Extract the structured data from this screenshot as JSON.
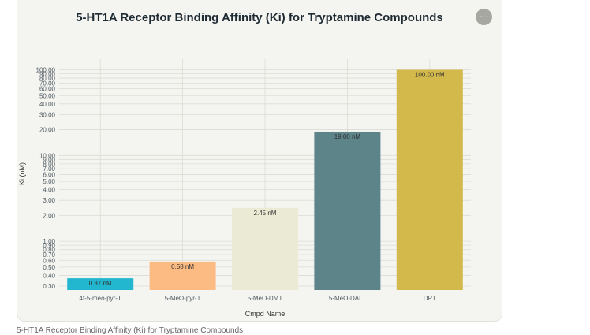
{
  "menu": {
    "more_icon": "ellipsis-icon",
    "more_glyph": "···"
  },
  "caption": "5-HT1A Receptor Binding Affinity (Ki) for Tryptamine Compounds",
  "chart_data": {
    "type": "bar",
    "title": "5-HT1A Receptor Binding Affinity (Ki) for Tryptamine Compounds",
    "xlabel": "Cmpd Name",
    "ylabel": "Ki (nM)",
    "y_scale": "log",
    "ylim": [
      0.27,
      100
    ],
    "grid": true,
    "categories": [
      "4f-5-meo-pyr-T",
      "5-MeO-pyr-T",
      "5-MeO-DMT",
      "5-MeO-DALT",
      "DPT"
    ],
    "values": [
      0.37,
      0.58,
      2.45,
      19.0,
      100.0
    ],
    "data_labels": [
      "0.37 nM",
      "0.58 nM",
      "2.45 nM",
      "19.00 nM",
      "100.00 nM"
    ],
    "colors": [
      "#22b7cf",
      "#fdbb84",
      "#ebebd5",
      "#5c8489",
      "#d3b84b"
    ],
    "y_ticks": [
      0.3,
      0.4,
      0.5,
      0.6,
      0.7,
      0.8,
      0.9,
      1,
      2,
      3,
      4,
      5,
      6,
      7,
      8,
      9,
      10,
      20,
      30,
      40,
      50,
      60,
      70,
      80,
      90,
      100
    ],
    "y_tick_labels": [
      "0.30",
      "0.40",
      "0.50",
      "0.60",
      "0.70",
      "0.80",
      "0.90",
      "1.00",
      "2.00",
      "3.00",
      "4.00",
      "5.00",
      "6.00",
      "7.00",
      "8.00",
      "9.00",
      "10.00",
      "20.00",
      "30.00",
      "40.00",
      "50.00",
      "60.00",
      "70.00",
      "80.00",
      "90.00",
      "100.00"
    ]
  }
}
